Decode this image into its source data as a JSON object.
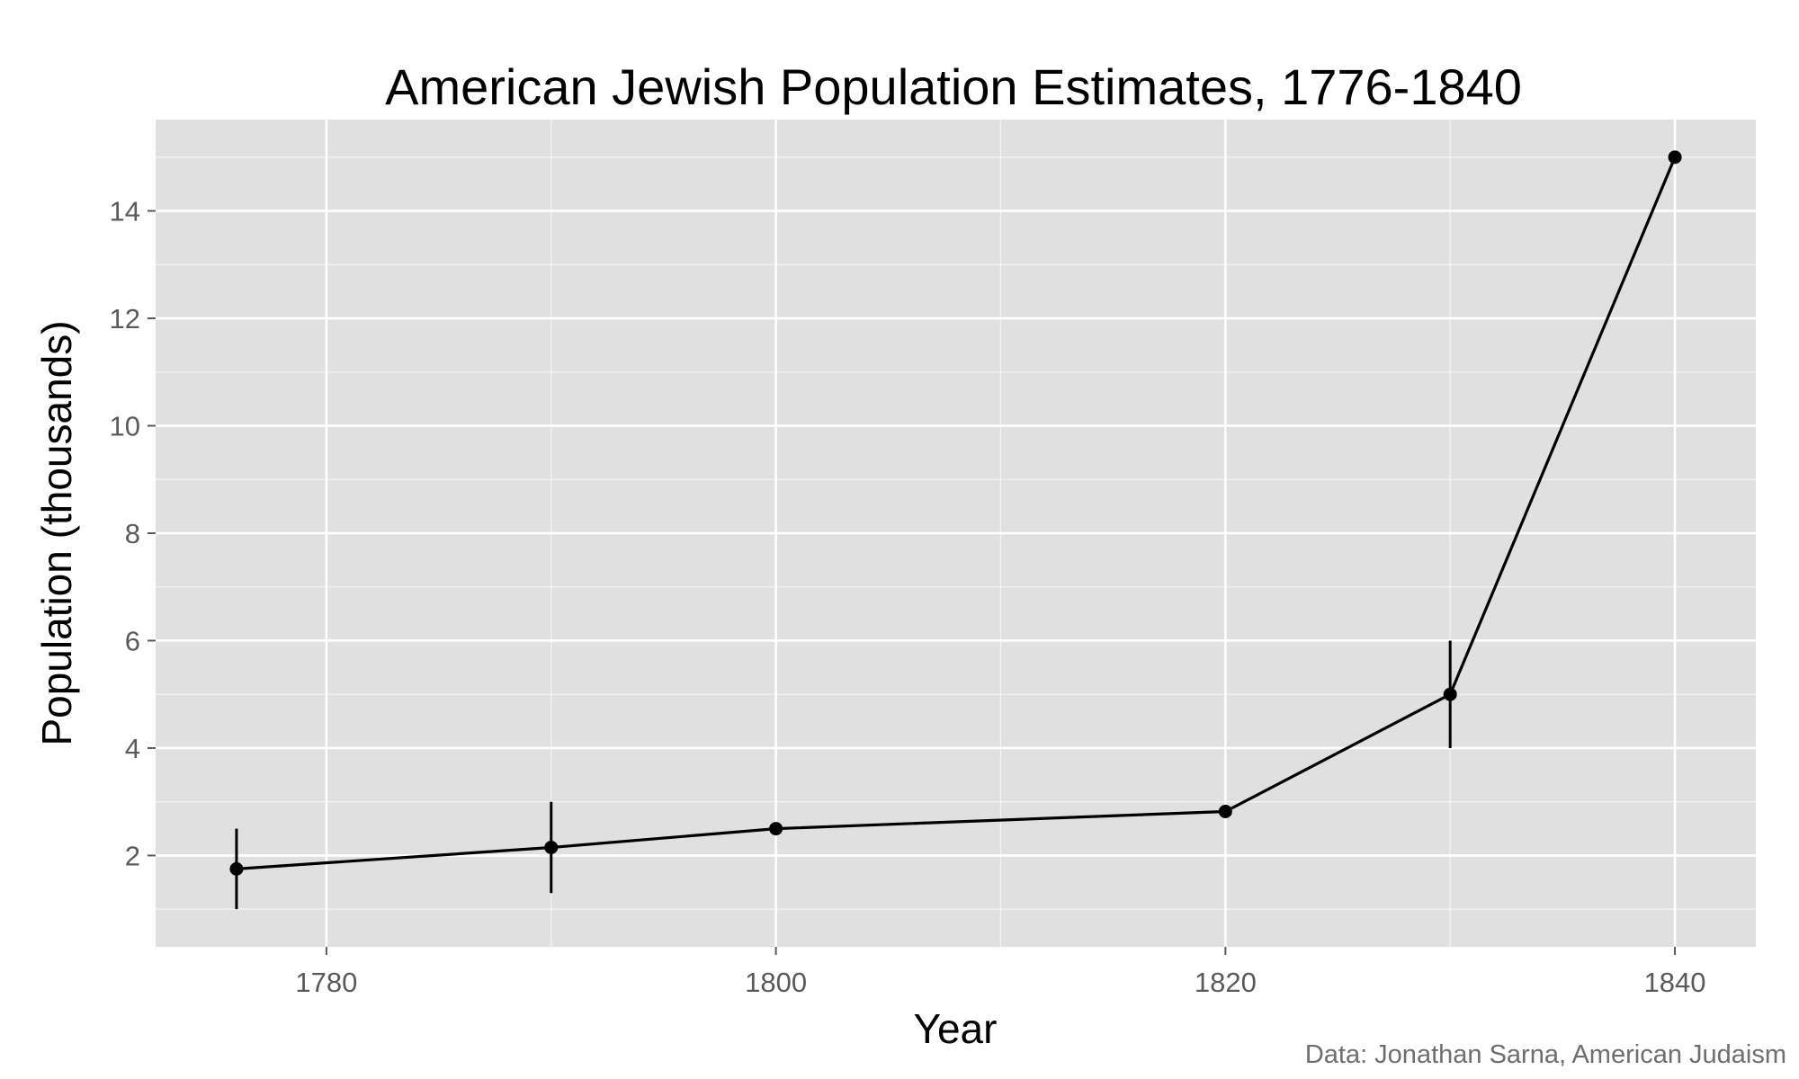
{
  "chart_data": {
    "type": "line",
    "title": "American Jewish Population Estimates, 1776-1840",
    "xlabel": "Year",
    "ylabel": "Population (thousands)",
    "caption": "Data: Jonathan Sarna, American Judaism",
    "xlim": [
      1772.4,
      1843.6
    ],
    "ylim": [
      0.3,
      15.7
    ],
    "x_ticks": [
      1780,
      1800,
      1820,
      1840
    ],
    "x_minor_ticks": [
      1790,
      1810,
      1830
    ],
    "y_ticks": [
      2,
      4,
      6,
      8,
      10,
      12,
      14
    ],
    "y_minor_ticks": [
      1,
      3,
      5,
      7,
      9,
      11,
      13,
      15
    ],
    "grid": true,
    "background": "#e0e0e0",
    "grid_color": "#ffffff",
    "line_color": "#000000",
    "series": [
      {
        "x": [
          1776,
          1790,
          1800,
          1820,
          1830,
          1840
        ],
        "y": [
          1.75,
          2.15,
          2.5,
          2.82,
          5.0,
          15.0
        ],
        "error_low": [
          1.0,
          1.3,
          null,
          null,
          4.0,
          null
        ],
        "error_high": [
          2.5,
          3.0,
          null,
          null,
          6.0,
          null
        ]
      }
    ]
  }
}
